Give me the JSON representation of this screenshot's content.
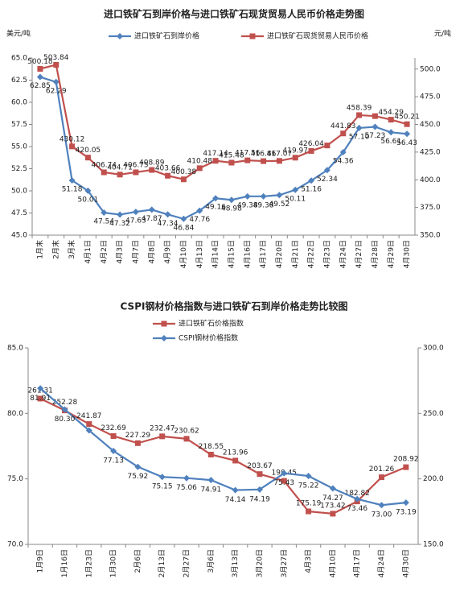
{
  "chart_data": [
    {
      "type": "line",
      "title": "进口铁矿石到岸价格与进口铁矿石现货贸易人民币价格走势图",
      "y_label": "美元/吨",
      "y2_label": "元/吨",
      "categories": [
        "1月末",
        "2月末",
        "3月末",
        "4月1日",
        "4月2日",
        "4月3日",
        "4月7日",
        "4月8日",
        "4月9日",
        "4月10日",
        "4月13日",
        "4月14日",
        "4月15日",
        "4月16日",
        "4月17日",
        "4月20日",
        "4月21日",
        "4月22日",
        "4月23日",
        "4月24日",
        "4月27日",
        "4月28日",
        "4月29日",
        "4月30日"
      ],
      "ylim": [
        45,
        65
      ],
      "yticks": [
        {
          "value": 45,
          "label": "45.0"
        },
        {
          "value": 47.5,
          "label": "47.5"
        },
        {
          "value": 50,
          "label": "50.0"
        },
        {
          "value": 52.5,
          "label": "52.5"
        },
        {
          "value": 55,
          "label": "55.0"
        },
        {
          "value": 57.5,
          "label": "57.5"
        },
        {
          "value": 60,
          "label": "60.0"
        },
        {
          "value": 62.5,
          "label": "62.5"
        },
        {
          "value": 65,
          "label": "65.0"
        }
      ],
      "y2lim": [
        350,
        510
      ],
      "y2ticks": [
        {
          "value": 350,
          "label": "350.0"
        },
        {
          "value": 375,
          "label": "375.0"
        },
        {
          "value": 400,
          "label": "400.0"
        },
        {
          "value": 425,
          "label": "425.0"
        },
        {
          "value": 450,
          "label": "450.0"
        },
        {
          "value": 475,
          "label": "475.0"
        },
        {
          "value": 500,
          "label": "500.0"
        }
      ],
      "grid": false,
      "series": [
        {
          "name": "进口铁矿石到岸价格",
          "color": "#4f81bd",
          "marker": "diamond",
          "values": [
            62.85,
            62.29,
            51.18,
            50.01,
            47.54,
            47.32,
            47.63,
            47.87,
            47.34,
            46.84,
            47.76,
            49.16,
            48.98,
            49.38,
            49.38,
            49.52,
            50.11,
            51.16,
            52.34,
            54.36,
            57.1,
            57.23,
            56.61,
            56.43
          ],
          "value_labels": [
            "62.85",
            "62.29",
            "51.18",
            "50.01",
            "47.54",
            "47.32",
            "47.63",
            "47.87",
            "47.34",
            "46.84",
            "47.76",
            "49.16",
            "48.98",
            "49.38",
            "49.38",
            "49.52",
            "50.11",
            "51.16",
            "52.34",
            "54.36",
            "57.10",
            "57.23",
            "56.61",
            "56.43"
          ]
        },
        {
          "name": "进口铁矿石现货贸易人民币价格",
          "color": "#c0504d",
          "marker": "square",
          "axis": "y2",
          "values": [
            500.18,
            503.84,
            430.12,
            420.05,
            406.74,
            404.71,
            406.75,
            408.89,
            403.66,
            400.38,
            410.48,
            417.14,
            415.48,
            417.56,
            416.86,
            417.07,
            419.97,
            426.04,
            431,
            441.83,
            458.39,
            457.5,
            454.29,
            450.21
          ],
          "value_labels": [
            "500.18",
            "503.84",
            "430.12",
            "420.05",
            "406.74",
            "404.71",
            "406.75",
            "408.89",
            "403.66",
            "400.38",
            "410.48",
            "417.14",
            "415.48",
            "417.56",
            "416.86",
            "417.07",
            "419.97",
            "426.04",
            null,
            "441.83",
            "458.39",
            null,
            "454.29",
            "450.21"
          ]
        }
      ]
    },
    {
      "type": "line",
      "title": "CSPI钢材价格指数与进口铁矿石到岸价格走势比较图",
      "categories": [
        "1月9日",
        "1月16日",
        "1月23日",
        "1月30日",
        "2月6日",
        "2月13日",
        "2月27日",
        "3月6日",
        "3月13日",
        "3月20日",
        "3月27日",
        "4月3日",
        "4月10日",
        "4月17日",
        "4月24日",
        "4月30日"
      ],
      "ylim": [
        70,
        85
      ],
      "yticks": [
        {
          "value": 70,
          "label": "70.0"
        },
        {
          "value": 75,
          "label": "75.0"
        },
        {
          "value": 80,
          "label": "80.0"
        },
        {
          "value": 85,
          "label": "85.0"
        }
      ],
      "y2lim": [
        150,
        300
      ],
      "y2ticks": [
        {
          "value": 150,
          "label": "150.0"
        },
        {
          "value": 200,
          "label": "200.0"
        },
        {
          "value": 250,
          "label": "250.0"
        },
        {
          "value": 300,
          "label": "300.0"
        }
      ],
      "grid": false,
      "series": [
        {
          "name": "进口铁矿石价格指数",
          "color": "#c0504d",
          "marker": "square",
          "axis": "y2",
          "values": [
            261.31,
            252.28,
            241.87,
            232.69,
            227.29,
            232.47,
            230.62,
            218.55,
            213.96,
            203.67,
            198.45,
            175.19,
            173.42,
            182.82,
            201.26,
            208.92
          ]
        },
        {
          "name": "CSPI钢材价格指数",
          "color": "#4f81bd",
          "marker": "diamond",
          "values": [
            81.91,
            80.3,
            78.7,
            77.13,
            75.92,
            75.15,
            75.06,
            74.91,
            74.14,
            74.19,
            75.43,
            75.22,
            74.27,
            73.46,
            73,
            73.19
          ],
          "value_labels": [
            "81.91",
            "80.30",
            null,
            "77.13",
            "75.92",
            "75.15",
            "75.06",
            "74.91",
            "74.14",
            "74.19",
            "75.43",
            "75.22",
            "74.27",
            "73.46",
            "73.00",
            "73.19"
          ]
        }
      ]
    }
  ]
}
